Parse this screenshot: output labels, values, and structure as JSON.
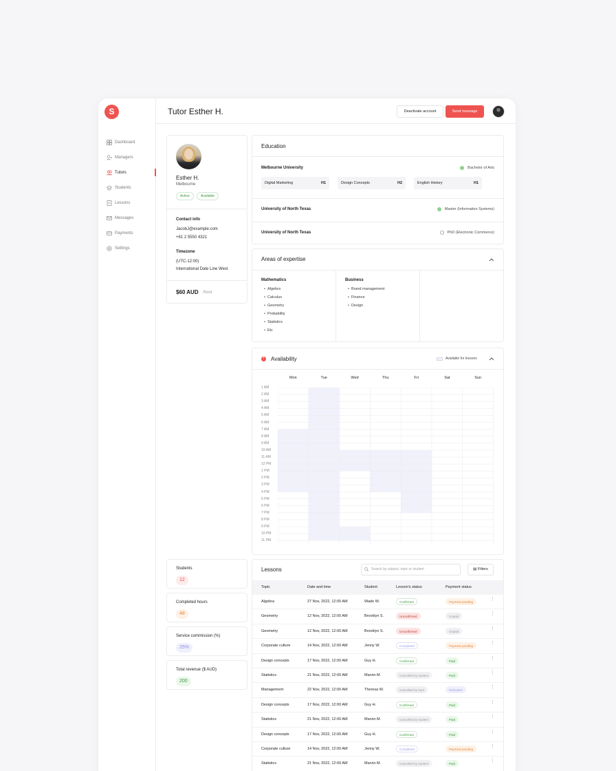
{
  "app": {
    "logo_letter": "S",
    "accent": "#ef5350"
  },
  "sidebar": {
    "items": [
      {
        "label": "Dashboard",
        "icon": "grid-icon",
        "active": false
      },
      {
        "label": "Managers",
        "icon": "user-plus-icon",
        "active": false
      },
      {
        "label": "Tutors",
        "icon": "users-icon",
        "active": true
      },
      {
        "label": "Students",
        "icon": "graduation-cap-icon",
        "active": false
      },
      {
        "label": "Lessons",
        "icon": "document-icon",
        "active": false
      },
      {
        "label": "Messages",
        "icon": "mail-icon",
        "active": false
      },
      {
        "label": "Payments",
        "icon": "wallet-icon",
        "active": false
      },
      {
        "label": "Settings",
        "icon": "gear-icon",
        "active": false
      }
    ]
  },
  "header": {
    "title": "Tutor Esther H.",
    "deactivate_label": "Deactivate account",
    "send_label": "Send message"
  },
  "profile": {
    "name": "Esther H.",
    "city": "Melbourne",
    "badges": [
      "Active",
      "Available"
    ],
    "contact_title": "Contact info",
    "email": "JacobJ@example.com",
    "phone": "+61 2 5550 4321",
    "timezone_title": "Timezone",
    "timezone_offset": "(UTC-12:00)",
    "timezone_name": "International Date Line West",
    "rate": "$60 AUD",
    "rate_unit": "/hour"
  },
  "stats": [
    {
      "label": "Students",
      "value": "12",
      "color": "#e0524f",
      "bg": "#fdecec"
    },
    {
      "label": "Completed hours",
      "value": "48",
      "color": "#e5863a",
      "bg": "#fdf1e6"
    },
    {
      "label": "Service commission (%)",
      "value": "25%",
      "color": "#8a8ae0",
      "bg": "#f0f0fc"
    },
    {
      "label": "Total revenue ($ AUD)",
      "value": "200",
      "color": "#3a9a3a",
      "bg": "#ebf7eb"
    }
  ],
  "education": {
    "title": "Education",
    "rows": [
      {
        "school": "Melbourne University",
        "degree": "Bachelor of Arts",
        "status": "done",
        "subjects": [
          {
            "name": "Digital Marketing",
            "level": "H1"
          },
          {
            "name": "Design Concepts",
            "level": "H2"
          },
          {
            "name": "English History",
            "level": "H1"
          }
        ]
      },
      {
        "school": "University of North Texas",
        "degree": "Master (Information Systems)",
        "status": "done",
        "subjects": []
      },
      {
        "school": "University of North Texas",
        "degree": "PhD (Electronic Commerce)",
        "status": "in-progress",
        "subjects": []
      }
    ]
  },
  "expertise": {
    "title": "Areas of expertise",
    "columns": [
      {
        "title": "Mathematics",
        "items": [
          "Algebra",
          "Calculus",
          "Geometry",
          "Probability",
          "Statistics",
          "Etc"
        ]
      },
      {
        "title": "Business",
        "items": [
          "Brand management",
          "Finance",
          "Design"
        ]
      }
    ]
  },
  "availability": {
    "title": "Availability",
    "legend_label": "Available for lessons",
    "days": [
      "Mon",
      "Tue",
      "Wed",
      "Thu",
      "Fri",
      "Sat",
      "Sun"
    ],
    "hours": [
      "1 AM",
      "2 AM",
      "3 AM",
      "4 AM",
      "5 AM",
      "6 AM",
      "7 AM",
      "8 AM",
      "9 AM",
      "10 AM",
      "11 AM",
      "12 PM",
      "1 PM",
      "2 PM",
      "3 PM",
      "4 PM",
      "5 PM",
      "6 PM",
      "7 PM",
      "8 PM",
      "9 PM",
      "10 PM",
      "11 PM"
    ],
    "ranges": [
      {
        "day": 0,
        "from": 6,
        "to": 15
      },
      {
        "day": 1,
        "from": 0,
        "to": 22
      },
      {
        "day": 2,
        "from": 9,
        "to": 12
      },
      {
        "day": 2,
        "from": 20,
        "to": 22
      },
      {
        "day": 3,
        "from": 9,
        "to": 15
      },
      {
        "day": 4,
        "from": 9,
        "to": 18
      }
    ],
    "fill_color": "#f1f1fb"
  },
  "lessons": {
    "title": "Lessons",
    "search_placeholder": "Search by subject, topic or student",
    "filters_label": "Filters",
    "columns": [
      "Topic",
      "Date and time",
      "Student",
      "Lesson's status",
      "Payment status"
    ],
    "rows": [
      {
        "topic": "Algebra",
        "date": "27 Nov, 2022, 12:00 AM",
        "student": "Wade W.",
        "status": "Confirmed",
        "payment": "Payment pending"
      },
      {
        "topic": "Geometry",
        "date": "12 Nov, 2022, 12:00 AM",
        "student": "Brooklyn S.",
        "status": "Unconfirmed",
        "payment": "Unpaid"
      },
      {
        "topic": "Geometry",
        "date": "12 Nov, 2022, 12:00 AM",
        "student": "Brooklyn S.",
        "status": "Unconfirmed",
        "payment": "Unpaid"
      },
      {
        "topic": "Corporate culture",
        "date": "14 Nov, 2022, 12:00 AM",
        "student": "Jenny W.",
        "status": "Completed",
        "payment": "Payment pending"
      },
      {
        "topic": "Design concepts",
        "date": "17 Nov, 2022, 12:00 AM",
        "student": "Guy H.",
        "status": "Confirmed",
        "payment": "Paid"
      },
      {
        "topic": "Statistics",
        "date": "21 Nov, 2022, 12:00 AM",
        "student": "Marvin M.",
        "status": "Cancelled by student",
        "payment": "Paid"
      },
      {
        "topic": "Management",
        "date": "22 Nov, 2022, 12:00 AM",
        "student": "Theresa W.",
        "status": "Cancelled by tutor",
        "payment": "Refunded"
      },
      {
        "topic": "Design concepts",
        "date": "17 Nov, 2022, 12:00 AM",
        "student": "Guy H.",
        "status": "Confirmed",
        "payment": "Paid"
      },
      {
        "topic": "Statistics",
        "date": "21 Nov, 2022, 12:00 AM",
        "student": "Marvin M.",
        "status": "Cancelled by student",
        "payment": "Paid"
      },
      {
        "topic": "Design concepts",
        "date": "17 Nov, 2022, 12:00 AM",
        "student": "Guy H.",
        "status": "Confirmed",
        "payment": "Paid"
      },
      {
        "topic": "Corporate culture",
        "date": "14 Nov, 2022, 12:00 AM",
        "student": "Jenny W.",
        "status": "Completed",
        "payment": "Payment pending"
      },
      {
        "topic": "Statistics",
        "date": "21 Nov, 2022, 12:00 AM",
        "student": "Marvin M.",
        "status": "Cancelled by student",
        "payment": "Paid"
      }
    ]
  },
  "pill_styles": {
    "Confirmed": {
      "color": "#3a9a3a",
      "bg": "#fff",
      "border": "#cfe8cf"
    },
    "Unconfirmed": {
      "color": "#c0392b",
      "bg": "#fbe3e2",
      "border": "#fbe3e2"
    },
    "Completed": {
      "color": "#9a9ae8",
      "bg": "#fff",
      "border": "#e0e0f8"
    },
    "Cancelled by student": {
      "color": "#9a9aa2",
      "bg": "#f0f0f2",
      "border": "#f0f0f2"
    },
    "Cancelled by tutor": {
      "color": "#9a9aa2",
      "bg": "#f0f0f2",
      "border": "#f0f0f2"
    },
    "Payment pending": {
      "color": "#e5863a",
      "bg": "#fdf1e6",
      "border": "#fdf1e6"
    },
    "Unpaid": {
      "color": "#9a9aa2",
      "bg": "#f0f0f2",
      "border": "#f0f0f2"
    },
    "Paid": {
      "color": "#3a9a3a",
      "bg": "#ebf7eb",
      "border": "#ebf7eb"
    },
    "Refunded": {
      "color": "#9a9ae8",
      "bg": "#f0f0fc",
      "border": "#f0f0fc"
    }
  }
}
